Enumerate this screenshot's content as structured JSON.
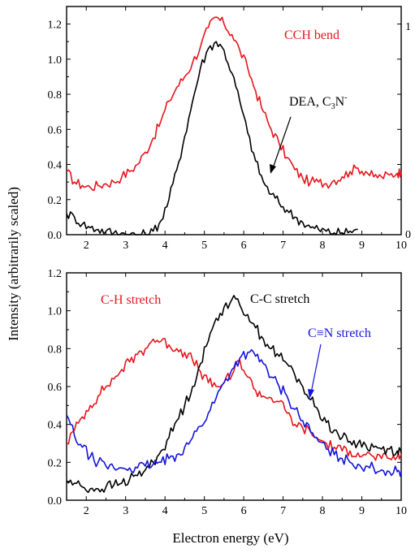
{
  "figure": {
    "ylabel": "Intensity (arbitrarily scaled)",
    "xlabel": "Electron energy (eV)"
  },
  "chart_data": [
    {
      "type": "line",
      "panel": "top",
      "xlim": [
        1.5,
        10
      ],
      "ylim": [
        0,
        1.3
      ],
      "xticks": [
        "2",
        "3",
        "4",
        "5",
        "6",
        "7",
        "8",
        "9",
        "10"
      ],
      "yticks": [
        "0.0",
        "0.2",
        "0.4",
        "0.6",
        "0.8",
        "1.0",
        "1.2"
      ],
      "right_tick_labels": [
        "0",
        "1"
      ],
      "series": [
        {
          "name": "CCH bend",
          "color": "#e8141c",
          "x": [
            1.5,
            1.7,
            1.9,
            2.1,
            2.3,
            2.5,
            2.7,
            2.9,
            3.1,
            3.3,
            3.5,
            3.7,
            3.9,
            4.1,
            4.3,
            4.5,
            4.7,
            4.9,
            5.1,
            5.3,
            5.5,
            5.7,
            5.9,
            6.1,
            6.3,
            6.5,
            6.7,
            6.9,
            7.1,
            7.3,
            7.5,
            7.7,
            7.9,
            8.1,
            8.3,
            8.5,
            8.7,
            8.9,
            9.1,
            9.3,
            9.5,
            9.7,
            9.9,
            10.0
          ],
          "y": [
            0.36,
            0.3,
            0.28,
            0.27,
            0.28,
            0.29,
            0.3,
            0.33,
            0.36,
            0.4,
            0.47,
            0.55,
            0.65,
            0.76,
            0.84,
            0.9,
            0.98,
            1.07,
            1.18,
            1.24,
            1.2,
            1.14,
            1.05,
            0.95,
            0.82,
            0.7,
            0.6,
            0.52,
            0.44,
            0.37,
            0.32,
            0.3,
            0.3,
            0.29,
            0.31,
            0.33,
            0.36,
            0.38,
            0.36,
            0.33,
            0.33,
            0.34,
            0.35,
            0.36
          ]
        },
        {
          "name": "DEA, C3N-",
          "color": "#000000",
          "x": [
            1.5,
            1.7,
            1.9,
            2.1,
            2.3,
            2.5,
            2.7,
            2.9,
            3.1,
            3.3,
            3.5,
            3.7,
            3.9,
            4.1,
            4.3,
            4.5,
            4.7,
            4.9,
            5.1,
            5.3,
            5.5,
            5.7,
            5.9,
            6.1,
            6.3,
            6.5,
            6.7,
            6.9,
            7.1,
            7.3,
            7.5,
            7.7,
            7.9,
            8.1,
            8.3,
            8.5,
            8.7,
            8.9
          ],
          "y": [
            0.12,
            0.1,
            0.06,
            0.04,
            0.03,
            0.02,
            0.01,
            0.01,
            0.0,
            0.0,
            0.0,
            0.02,
            0.08,
            0.2,
            0.37,
            0.56,
            0.76,
            0.95,
            1.06,
            1.1,
            1.05,
            0.92,
            0.76,
            0.58,
            0.42,
            0.3,
            0.23,
            0.18,
            0.14,
            0.1,
            0.07,
            0.04,
            0.03,
            0.02,
            0.01,
            0.01,
            0.02,
            0.03
          ]
        }
      ],
      "annotations": {
        "cch_bend": "CCH bend",
        "dea_prefix": "DEA, C",
        "dea_sub": "3",
        "dea_N": "N",
        "dea_sup": "-"
      }
    },
    {
      "type": "line",
      "panel": "bottom",
      "xlim": [
        1.5,
        10
      ],
      "ylim": [
        0,
        1.2
      ],
      "xticks": [
        "2",
        "3",
        "4",
        "5",
        "6",
        "7",
        "8",
        "9",
        "10"
      ],
      "yticks": [
        "0.0",
        "0.2",
        "0.4",
        "0.6",
        "0.8",
        "1.0",
        "1.2"
      ],
      "series": [
        {
          "name": "C-H stretch",
          "color": "#e8141c",
          "x": [
            1.5,
            1.7,
            1.9,
            2.1,
            2.3,
            2.5,
            2.7,
            2.9,
            3.1,
            3.3,
            3.5,
            3.7,
            3.9,
            4.1,
            4.3,
            4.5,
            4.7,
            4.9,
            5.1,
            5.3,
            5.5,
            5.7,
            5.9,
            6.1,
            6.3,
            6.5,
            6.7,
            6.9,
            7.1,
            7.3,
            7.5,
            7.7,
            7.9,
            8.1,
            8.3,
            8.5,
            8.7,
            8.9,
            9.1,
            9.3,
            9.5,
            9.7,
            9.9,
            10.0
          ],
          "y": [
            0.3,
            0.37,
            0.44,
            0.5,
            0.55,
            0.6,
            0.64,
            0.69,
            0.73,
            0.77,
            0.8,
            0.85,
            0.84,
            0.82,
            0.8,
            0.78,
            0.74,
            0.68,
            0.62,
            0.6,
            0.62,
            0.66,
            0.74,
            0.65,
            0.58,
            0.55,
            0.54,
            0.52,
            0.46,
            0.4,
            0.38,
            0.36,
            0.32,
            0.3,
            0.28,
            0.26,
            0.26,
            0.25,
            0.24,
            0.23,
            0.22,
            0.22,
            0.23,
            0.24
          ]
        },
        {
          "name": "C-C stretch",
          "color": "#000000",
          "x": [
            1.5,
            1.7,
            1.9,
            2.1,
            2.3,
            2.5,
            2.7,
            2.9,
            3.1,
            3.3,
            3.5,
            3.7,
            3.9,
            4.1,
            4.3,
            4.5,
            4.7,
            4.9,
            5.1,
            5.3,
            5.5,
            5.7,
            5.9,
            6.1,
            6.3,
            6.5,
            6.7,
            6.9,
            7.1,
            7.3,
            7.5,
            7.7,
            7.9,
            8.1,
            8.3,
            8.5,
            8.7,
            8.9,
            9.1,
            9.3,
            9.5,
            9.7,
            9.9,
            10.0
          ],
          "y": [
            0.1,
            0.09,
            0.07,
            0.06,
            0.06,
            0.07,
            0.08,
            0.09,
            0.11,
            0.13,
            0.16,
            0.2,
            0.26,
            0.33,
            0.42,
            0.5,
            0.6,
            0.72,
            0.84,
            0.96,
            1.02,
            1.06,
            1.03,
            0.98,
            0.91,
            0.85,
            0.8,
            0.76,
            0.72,
            0.66,
            0.6,
            0.53,
            0.47,
            0.41,
            0.37,
            0.33,
            0.31,
            0.3,
            0.29,
            0.28,
            0.27,
            0.27,
            0.26,
            0.25
          ]
        },
        {
          "name": "C≡N stretch",
          "color": "#1414dc",
          "x": [
            1.5,
            1.7,
            1.9,
            2.1,
            2.3,
            2.5,
            2.7,
            2.9,
            3.1,
            3.3,
            3.5,
            3.7,
            3.9,
            4.1,
            4.3,
            4.5,
            4.7,
            4.9,
            5.1,
            5.3,
            5.5,
            5.7,
            5.9,
            6.1,
            6.3,
            6.5,
            6.7,
            6.9,
            7.1,
            7.3,
            7.5,
            7.7,
            7.9,
            8.1,
            8.3,
            8.5,
            8.7,
            8.9,
            9.1,
            9.3,
            9.5,
            9.7,
            9.9,
            10.0
          ],
          "y": [
            0.45,
            0.34,
            0.28,
            0.23,
            0.2,
            0.18,
            0.17,
            0.17,
            0.17,
            0.17,
            0.18,
            0.19,
            0.2,
            0.22,
            0.24,
            0.28,
            0.33,
            0.39,
            0.46,
            0.54,
            0.62,
            0.69,
            0.75,
            0.78,
            0.76,
            0.72,
            0.65,
            0.6,
            0.55,
            0.48,
            0.42,
            0.36,
            0.31,
            0.27,
            0.24,
            0.22,
            0.2,
            0.19,
            0.18,
            0.17,
            0.16,
            0.15,
            0.15,
            0.15
          ]
        }
      ],
      "annotations": {
        "ch_stretch": "C-H stretch",
        "cc_stretch": "C-C stretch",
        "cn_stretch": "C≡N stretch"
      }
    }
  ]
}
